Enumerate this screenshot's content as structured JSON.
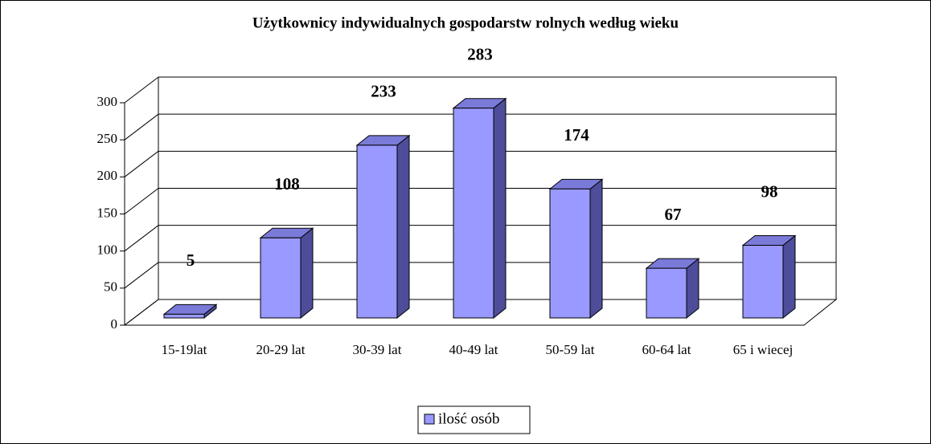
{
  "chart_data": {
    "type": "bar3d",
    "title": "Użytkownicy indywidualnych gospodarstw rolnych według wieku",
    "categories": [
      "15-19lat",
      "20-29 lat",
      "30-39 lat",
      "40-49 lat",
      "50-59 lat",
      "60-64 lat",
      "65 i wiecej"
    ],
    "series": [
      {
        "name": "ilość osób",
        "color": "#9999ff",
        "values": [
          5,
          108,
          233,
          283,
          174,
          67,
          98
        ]
      }
    ],
    "ylim": [
      0,
      300
    ],
    "yticks": [
      0,
      50,
      100,
      150,
      200,
      250,
      300
    ],
    "grid": true,
    "legend": "bottom"
  }
}
